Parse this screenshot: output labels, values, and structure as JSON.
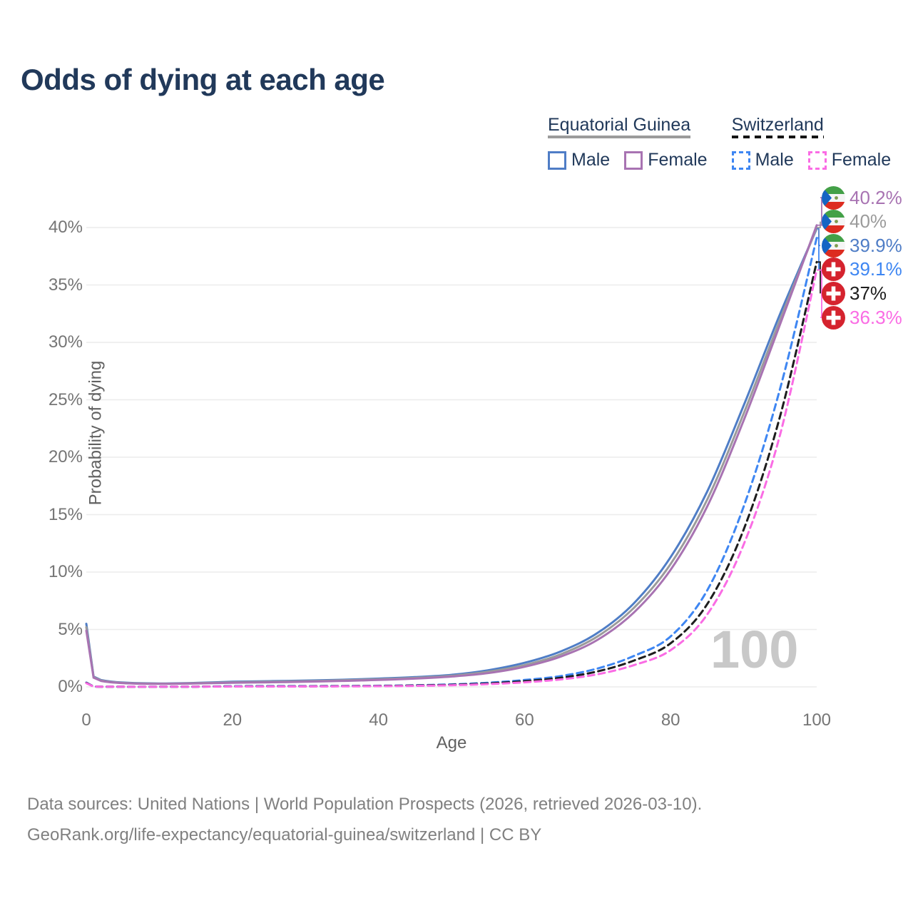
{
  "title": "Odds of dying at each age",
  "legend": {
    "groups": [
      {
        "label": "Equatorial Guinea",
        "underline_style": "solid",
        "underline_color": "#9b9b9b",
        "items": [
          {
            "label": "Male",
            "color": "#4f7dc6",
            "dashed": false
          },
          {
            "label": "Female",
            "color": "#a873b2",
            "dashed": false
          }
        ]
      },
      {
        "label": "Switzerland",
        "underline_style": "dashed",
        "underline_color": "#141414",
        "items": [
          {
            "label": "Male",
            "color": "#3e86f2",
            "dashed": true
          },
          {
            "label": "Female",
            "color": "#fa6ce4",
            "dashed": true
          }
        ]
      }
    ]
  },
  "chart_data": {
    "type": "line",
    "title": "Odds of dying at each age",
    "xlabel": "Age",
    "ylabel": "Probability of dying",
    "xlim": [
      0,
      100
    ],
    "ylim_percent": [
      0,
      42
    ],
    "grid": "horizontal",
    "legend_position": "top-right",
    "watermark": "100",
    "x_ages": [
      0,
      1,
      2,
      5,
      10,
      15,
      20,
      25,
      30,
      35,
      40,
      45,
      50,
      55,
      60,
      65,
      70,
      75,
      80,
      85,
      90,
      95,
      100
    ],
    "xticks": [
      "0",
      "20",
      "40",
      "60",
      "80",
      "100"
    ],
    "xtick_values": [
      0,
      20,
      40,
      60,
      80,
      100
    ],
    "yticks": [
      "0%",
      "5%",
      "10%",
      "15%",
      "20%",
      "25%",
      "30%",
      "35%",
      "40%"
    ],
    "ytick_values": [
      0,
      5,
      10,
      15,
      20,
      25,
      30,
      35,
      40
    ],
    "series": [
      {
        "id": "gq-male",
        "name": "Equatorial Guinea Male",
        "flag": "gq",
        "color": "#4f7dc6",
        "dashed": false,
        "end_label": "39.9%",
        "label_order": 2,
        "values_percent": [
          5.5,
          0.9,
          0.6,
          0.38,
          0.3,
          0.35,
          0.45,
          0.5,
          0.55,
          0.62,
          0.72,
          0.85,
          1.05,
          1.45,
          2.1,
          3.1,
          4.7,
          7.3,
          11.3,
          17.0,
          24.5,
          32.5,
          39.9
        ]
      },
      {
        "id": "gq-total",
        "name": "Equatorial Guinea Both sexes",
        "flag": "gq",
        "color": "#9b9b9b",
        "dashed": false,
        "end_label": "40%",
        "label_order": 1,
        "values_percent": [
          5.2,
          0.85,
          0.56,
          0.35,
          0.28,
          0.32,
          0.4,
          0.45,
          0.5,
          0.57,
          0.66,
          0.78,
          0.97,
          1.32,
          1.9,
          2.85,
          4.4,
          6.9,
          10.7,
          16.3,
          23.8,
          32.0,
          40.0
        ]
      },
      {
        "id": "gq-female",
        "name": "Equatorial Guinea Female",
        "flag": "gq",
        "color": "#a873b2",
        "dashed": false,
        "end_label": "40.2%",
        "label_order": 0,
        "values_percent": [
          4.9,
          0.8,
          0.52,
          0.33,
          0.26,
          0.3,
          0.36,
          0.4,
          0.45,
          0.52,
          0.6,
          0.72,
          0.9,
          1.2,
          1.75,
          2.65,
          4.1,
          6.5,
          10.2,
          15.7,
          23.2,
          31.6,
          40.2
        ]
      },
      {
        "id": "ch-male",
        "name": "Switzerland Male",
        "flag": "ch",
        "color": "#3e86f2",
        "dashed": true,
        "end_label": "39.1%",
        "label_order": 3,
        "values_percent": [
          0.38,
          0.03,
          0.02,
          0.01,
          0.01,
          0.02,
          0.06,
          0.07,
          0.07,
          0.08,
          0.1,
          0.14,
          0.22,
          0.36,
          0.6,
          0.95,
          1.6,
          2.7,
          4.4,
          8.4,
          15.7,
          26.0,
          39.1
        ]
      },
      {
        "id": "ch-total",
        "name": "Switzerland Both sexes",
        "flag": "ch",
        "color": "#1d1d1d",
        "dashed": true,
        "end_label": "37%",
        "label_order": 4,
        "values_percent": [
          0.35,
          0.03,
          0.02,
          0.01,
          0.01,
          0.02,
          0.04,
          0.05,
          0.05,
          0.06,
          0.08,
          0.12,
          0.18,
          0.3,
          0.5,
          0.8,
          1.35,
          2.3,
          3.8,
          7.2,
          13.7,
          23.6,
          37.0
        ]
      },
      {
        "id": "ch-female",
        "name": "Switzerland Female",
        "flag": "ch",
        "color": "#fa6ce4",
        "dashed": true,
        "end_label": "36.3%",
        "label_order": 5,
        "values_percent": [
          0.32,
          0.025,
          0.015,
          0.01,
          0.01,
          0.015,
          0.03,
          0.03,
          0.035,
          0.045,
          0.06,
          0.09,
          0.14,
          0.24,
          0.4,
          0.65,
          1.1,
          1.9,
          3.2,
          6.3,
          12.4,
          22.0,
          36.3
        ]
      }
    ]
  },
  "flag_colors": {
    "gq_green": "#43a047",
    "gq_white": "#f5f5f5",
    "gq_red": "#dd2c20",
    "gq_blue": "#1565c4",
    "gq_emblem": "#7d9c4e",
    "ch_red": "#d5232e",
    "ch_cross": "#ffffff"
  },
  "grid_color": "#ececec",
  "watermark_color": "#c8c8c8",
  "footer": {
    "line1": "Data sources: United Nations | World Population Prospects (2026, retrieved 2026-03-10).",
    "line2": "GeoRank.org/life-expectancy/equatorial-guinea/switzerland | CC BY"
  }
}
